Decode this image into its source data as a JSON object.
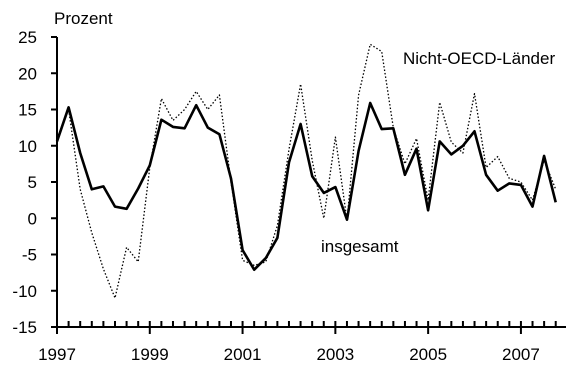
{
  "chart_data": {
    "type": "line",
    "ylabel": "Prozent",
    "ylim": [
      -15,
      25
    ],
    "xlim": [
      1997,
      2008
    ],
    "grid": false,
    "legend": "none",
    "y_ticks": [
      25,
      20,
      15,
      10,
      5,
      0,
      -5,
      -10,
      -15
    ],
    "y_tick_labels": [
      "25",
      "20",
      "15",
      "10",
      "5",
      "0",
      "-5",
      "-10",
      "-15"
    ],
    "x_ticks": [
      1997,
      1999,
      2001,
      2003,
      2005,
      2007
    ],
    "x_tick_labels": [
      "1997",
      "1999",
      "2001",
      "2003",
      "2005",
      "2007"
    ],
    "series": [
      {
        "name": "insgesamt",
        "style": "solid",
        "color": "#000000",
        "x": [
          1997.0,
          1997.25,
          1997.5,
          1997.75,
          1998.0,
          1998.25,
          1998.5,
          1998.75,
          1999.0,
          1999.25,
          1999.5,
          1999.75,
          2000.0,
          2000.25,
          2000.5,
          2000.75,
          2001.0,
          2001.25,
          2001.5,
          2001.75,
          2002.0,
          2002.25,
          2002.5,
          2002.75,
          2003.0,
          2003.25,
          2003.5,
          2003.75,
          2004.0,
          2004.25,
          2004.5,
          2004.75,
          2005.0,
          2005.25,
          2005.5,
          2005.75,
          2006.0,
          2006.25,
          2006.5,
          2006.75,
          2007.0,
          2007.25,
          2007.5,
          2007.75
        ],
        "values": [
          10.6,
          15.3,
          9.0,
          4.0,
          4.4,
          1.6,
          1.3,
          4.1,
          7.3,
          13.6,
          12.6,
          12.4,
          15.6,
          12.5,
          11.6,
          5.5,
          -4.4,
          -7.1,
          -5.5,
          -2.7,
          7.7,
          13.0,
          5.8,
          3.5,
          4.3,
          -0.2,
          9.3,
          15.9,
          12.3,
          12.4,
          6.0,
          9.6,
          1.1,
          10.6,
          8.8,
          10.0,
          12.0,
          6.0,
          3.8,
          4.8,
          4.6,
          1.6,
          8.6,
          2.2
        ]
      },
      {
        "name": "Nicht-OECD-Länder",
        "style": "dotted",
        "color": "#000000",
        "x": [
          1997.0,
          1997.25,
          1997.5,
          1997.75,
          1998.0,
          1998.25,
          1998.5,
          1998.75,
          1999.0,
          1999.25,
          1999.5,
          1999.75,
          2000.0,
          2000.25,
          2000.5,
          2000.75,
          2001.0,
          2001.25,
          2001.5,
          2001.75,
          2002.0,
          2002.25,
          2002.5,
          2002.75,
          2003.0,
          2003.25,
          2003.5,
          2003.75,
          2004.0,
          2004.25,
          2004.5,
          2004.75,
          2005.0,
          2005.25,
          2005.5,
          2005.75,
          2006.0,
          2006.25,
          2006.5,
          2006.75,
          2007.0,
          2007.25,
          2007.5,
          2007.75
        ],
        "values": [
          11.0,
          15.0,
          4.0,
          -2.0,
          -7.0,
          -11.0,
          -4.0,
          -6.0,
          7.0,
          16.5,
          13.5,
          15.0,
          17.5,
          15.0,
          17.0,
          5.0,
          -5.8,
          -6.5,
          -6.0,
          -1.0,
          9.5,
          18.5,
          8.0,
          0.0,
          11.2,
          -0.3,
          17.0,
          24.0,
          23.0,
          12.5,
          7.5,
          11.0,
          2.5,
          16.0,
          10.5,
          9.0,
          17.2,
          7.0,
          8.5,
          5.5,
          5.0,
          2.5,
          8.0,
          4.0
        ]
      }
    ],
    "annotations": [
      {
        "text": "Nicht-OECD-Länder",
        "series": "Nicht-OECD-Länder"
      },
      {
        "text": "insgesamt",
        "series": "insgesamt"
      }
    ]
  }
}
